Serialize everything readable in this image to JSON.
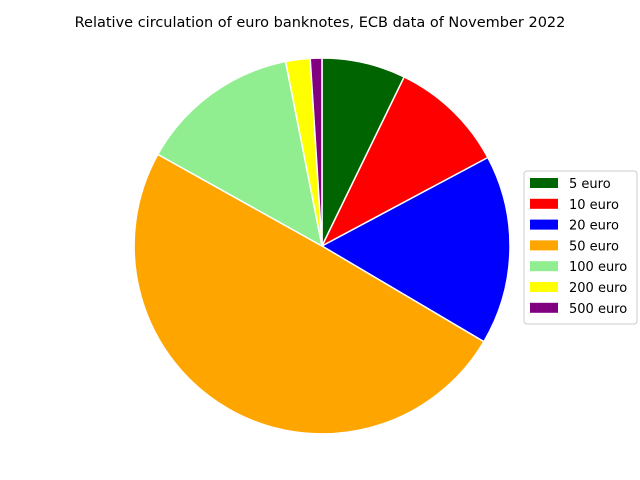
{
  "chart_data": {
    "type": "pie",
    "title": "Relative circulation of euro banknotes, ECB data of November 2022",
    "legend_position": "right",
    "start_angle_deg": 90,
    "direction": "clockwise",
    "slices": [
      {
        "label": "5 euro",
        "value": 7.2,
        "color": "#006400"
      },
      {
        "label": "10 euro",
        "value": 10.0,
        "color": "#ff0000"
      },
      {
        "label": "20 euro",
        "value": 16.3,
        "color": "#0000ff"
      },
      {
        "label": "50 euro",
        "value": 49.6,
        "color": "#ffa500"
      },
      {
        "label": "100 euro",
        "value": 13.8,
        "color": "#90ee90"
      },
      {
        "label": "200 euro",
        "value": 2.1,
        "color": "#ffff00"
      },
      {
        "label": "500 euro",
        "value": 1.0,
        "color": "#800080"
      }
    ]
  }
}
